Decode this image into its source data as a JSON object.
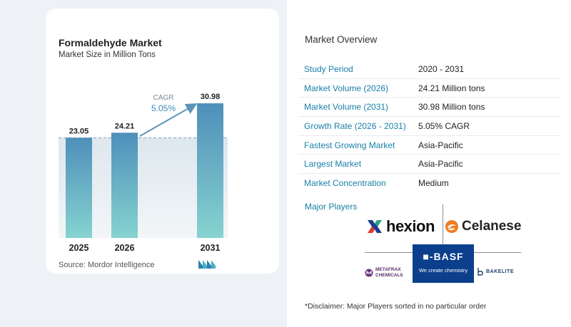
{
  "chart_data": {
    "type": "bar",
    "title": "Formaldehyde Market",
    "subtitle": "Market Size in Million Tons",
    "categories": [
      "2025",
      "2026",
      "2031"
    ],
    "values": [
      23.05,
      24.21,
      30.98
    ],
    "value_labels": [
      "23.05",
      "24.21",
      "30.98"
    ],
    "annotation": {
      "label": "CAGR",
      "value": "5.05%"
    },
    "bar_color": "#5d9bc0",
    "highlight_color": "#78c4cc",
    "grid": false
  },
  "source": "Source:  Mordor Intelligence",
  "overview": {
    "title": "Market Overview",
    "rows": [
      {
        "label": "Study Period",
        "value": "2020 - 2031"
      },
      {
        "label": "Market Volume (2026)",
        "value": "24.21 Million tons"
      },
      {
        "label": "Market Volume (2031)",
        "value": "30.98 Million tons"
      },
      {
        "label": "Growth Rate (2026 - 2031)",
        "value": "5.05% CAGR"
      },
      {
        "label": "Fastest Growing Market",
        "value": "Asia-Pacific"
      },
      {
        "label": "Largest Market",
        "value": "Asia-Pacific"
      },
      {
        "label": "Market Concentration",
        "value": "Medium"
      }
    ]
  },
  "major_players": {
    "title": "Major Players",
    "logos": {
      "hexion": "hexion",
      "celanese": "Celanese",
      "basf": "BASF",
      "basf_tagline": "We create chemistry",
      "metafrax_line1": "METAFRAX",
      "metafrax_line2": "CHEMICALS",
      "bakelite": "BAKELITE"
    }
  },
  "disclaimer": "*Disclaimer: Major Players sorted in no particular order"
}
